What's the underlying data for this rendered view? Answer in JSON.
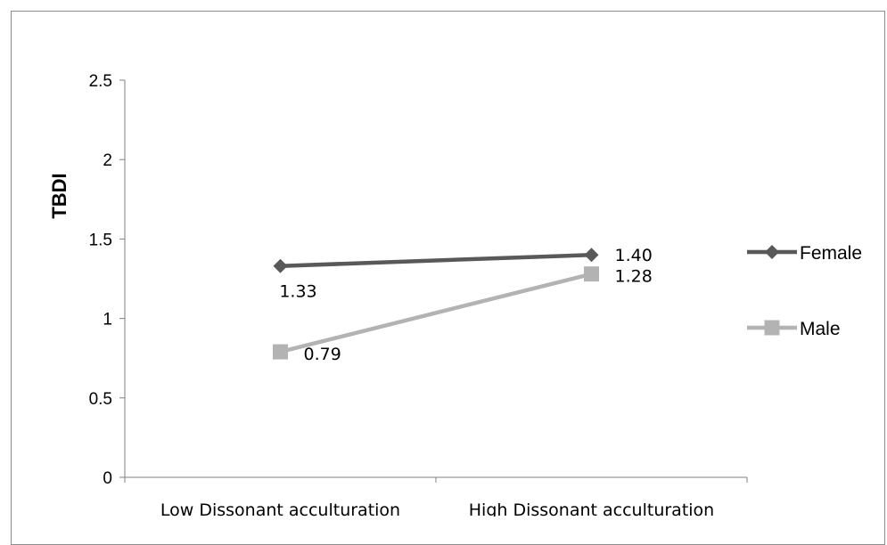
{
  "chart_data": {
    "type": "line",
    "title": "",
    "xlabel": "",
    "ylabel": "TBDI",
    "categories": [
      "Low Dissonant acculturation",
      "High Dissonant acculturation"
    ],
    "ylim": [
      0,
      2.5
    ],
    "yticks": [
      "0",
      "0.5",
      "1",
      "1.5",
      "2",
      "2.5"
    ],
    "grid": false,
    "legend_position": "right",
    "series": [
      {
        "name": "Female",
        "values": [
          1.33,
          1.4
        ],
        "labels": [
          "1.33",
          "1.40"
        ],
        "color": "#595959",
        "marker": "diamond"
      },
      {
        "name": "Male",
        "values": [
          0.79,
          1.28
        ],
        "labels": [
          "0.79",
          "1.28"
        ],
        "color": "#b3b3b3",
        "marker": "square"
      }
    ]
  }
}
